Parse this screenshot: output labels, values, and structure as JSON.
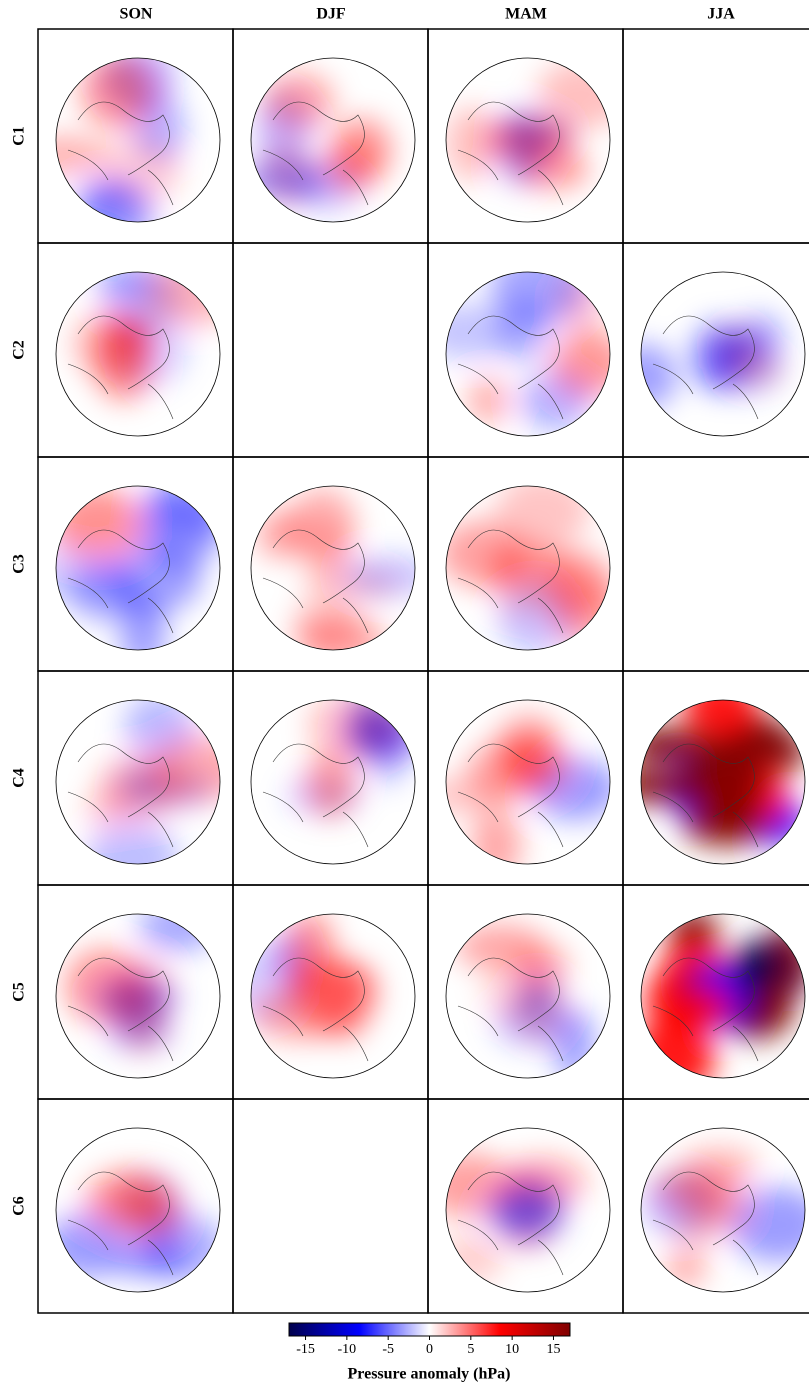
{
  "columns": [
    "SON",
    "DJF",
    "MAM",
    "JJA"
  ],
  "rows": [
    "C1",
    "C2",
    "C3",
    "C4",
    "C5",
    "C6"
  ],
  "maps": [
    [
      true,
      true,
      true,
      false
    ],
    [
      true,
      false,
      true,
      true
    ],
    [
      true,
      true,
      true,
      false
    ],
    [
      true,
      true,
      true,
      true
    ],
    [
      true,
      true,
      true,
      true
    ],
    [
      true,
      false,
      true,
      true
    ]
  ],
  "colorbar": {
    "label": "Pressure anomaly (hPa)",
    "lim": [
      -17,
      17
    ],
    "ticks": [
      -15,
      -10,
      -5,
      0,
      5,
      10,
      15
    ],
    "colormap": [
      "#00004c",
      "#0000ff",
      "#ffffff",
      "#ff0000",
      "#800000"
    ]
  }
}
